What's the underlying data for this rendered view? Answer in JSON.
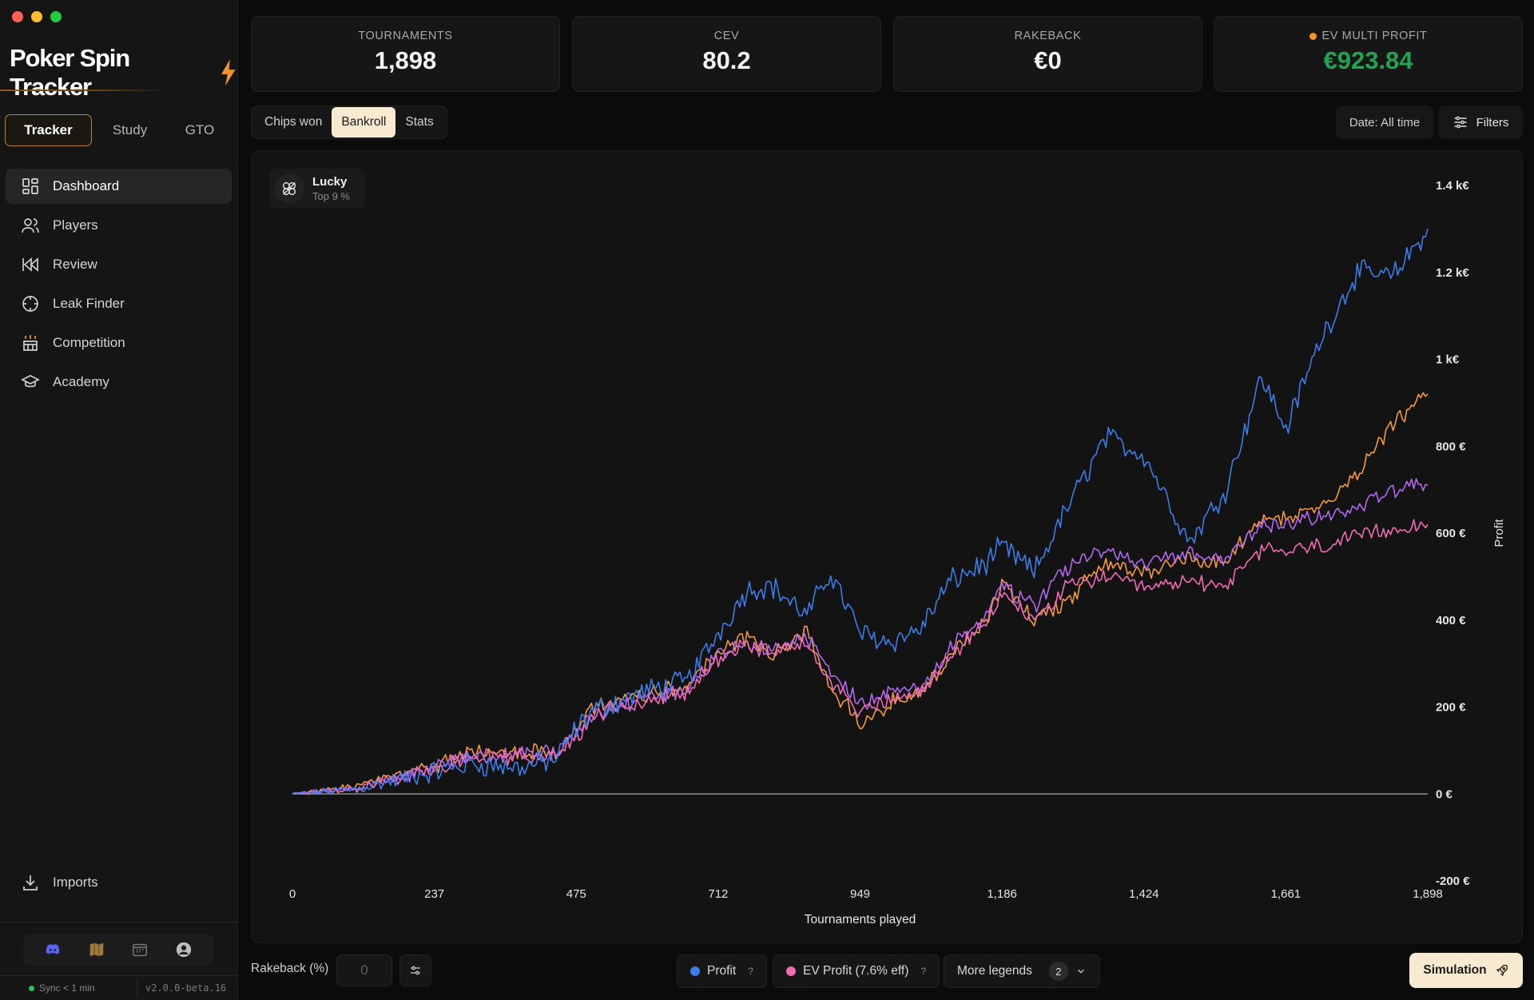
{
  "app": {
    "name": "Poker Spin Tracker"
  },
  "modes": [
    {
      "label": "Tracker"
    },
    {
      "label": "Study"
    },
    {
      "label": "GTO"
    }
  ],
  "nav": [
    {
      "label": "Dashboard",
      "icon": "dashboard-icon"
    },
    {
      "label": "Players",
      "icon": "users-icon"
    },
    {
      "label": "Review",
      "icon": "rewind-icon"
    },
    {
      "label": "Leak Finder",
      "icon": "crosshair-icon"
    },
    {
      "label": "Competition",
      "icon": "podium-icon"
    },
    {
      "label": "Academy",
      "icon": "graduation-cap-icon"
    }
  ],
  "imports_label": "Imports",
  "sync": {
    "text": "Sync < 1 min",
    "version": "v2.0.0-beta.16"
  },
  "stats": [
    {
      "label": "TOURNAMENTS",
      "value": "1,898"
    },
    {
      "label": "CEV",
      "value": "80.2"
    },
    {
      "label": "RAKEBACK",
      "value": "€0"
    },
    {
      "label": "EV MULTI PROFIT",
      "value": "€923.84",
      "color": "#22a455"
    }
  ],
  "tabs": [
    {
      "label": "Chips won"
    },
    {
      "label": "Bankroll"
    },
    {
      "label": "Stats"
    }
  ],
  "date_filter": "Date: All time",
  "filters_label": "Filters",
  "badge": {
    "title": "Lucky",
    "subtitle": "Top 9 %"
  },
  "rakeback": {
    "label": "Rakeback (%)",
    "value": "0"
  },
  "legends": {
    "profit": "Profit",
    "ev_profit": "EV Profit (7.6% eff)",
    "more": "More legends",
    "more_count": "2",
    "help": "?"
  },
  "simulation_label": "Simulation",
  "colors": {
    "accent": "#f7ead0",
    "profit": "#3b7de9",
    "ev": "#f06bb4",
    "orange": "#f39a3d",
    "purple": "#b268f0",
    "green": "#22a455"
  },
  "chart_data": {
    "type": "line",
    "xlabel": "Tournaments played",
    "ylabel": "Profit",
    "xlim": [
      0,
      1898
    ],
    "ylim": [
      -200,
      1400
    ],
    "x_ticks": [
      "0",
      "237",
      "475",
      "712",
      "949",
      "1,186",
      "1,424",
      "1,661",
      "1,898"
    ],
    "y_ticks": [
      "1.4 k€",
      "1.2 k€",
      "1 k€",
      "800 €",
      "600 €",
      "400 €",
      "200 €",
      "0 €",
      "-200 €"
    ],
    "x": [
      0,
      100,
      200,
      300,
      380,
      440,
      475,
      500,
      540,
      600,
      660,
      712,
      760,
      800,
      860,
      900,
      949,
      1000,
      1050,
      1100,
      1160,
      1186,
      1240,
      1300,
      1360,
      1424,
      1500,
      1560,
      1620,
      1661,
      1720,
      1780,
      1840,
      1898
    ],
    "series": [
      {
        "name": "Profit",
        "color": "#3b7de9",
        "values": [
          0,
          10,
          40,
          70,
          60,
          80,
          150,
          190,
          210,
          240,
          260,
          370,
          470,
          480,
          410,
          510,
          370,
          350,
          380,
          490,
          530,
          570,
          510,
          670,
          820,
          780,
          580,
          700,
          960,
          840,
          1050,
          1200,
          1190,
          1300
        ]
      },
      {
        "name": "",
        "color": "#f39a3d",
        "values": [
          0,
          15,
          50,
          95,
          95,
          100,
          140,
          200,
          210,
          230,
          245,
          330,
          360,
          320,
          370,
          240,
          170,
          210,
          230,
          320,
          400,
          480,
          400,
          450,
          530,
          510,
          540,
          530,
          630,
          640,
          660,
          740,
          850,
          920
        ]
      },
      {
        "name": "",
        "color": "#b268f0",
        "values": [
          0,
          12,
          45,
          90,
          90,
          95,
          135,
          185,
          200,
          220,
          240,
          320,
          350,
          330,
          360,
          280,
          210,
          230,
          240,
          340,
          410,
          480,
          430,
          530,
          560,
          530,
          550,
          540,
          620,
          620,
          640,
          660,
          700,
          710
        ]
      },
      {
        "name": "EV Profit (7.6% eff)",
        "color": "#f06bb4",
        "values": [
          0,
          11,
          42,
          88,
          88,
          92,
          130,
          180,
          195,
          215,
          235,
          310,
          345,
          320,
          355,
          260,
          190,
          215,
          230,
          320,
          390,
          460,
          400,
          480,
          500,
          470,
          490,
          480,
          560,
          560,
          570,
          590,
          610,
          620
        ]
      }
    ]
  }
}
